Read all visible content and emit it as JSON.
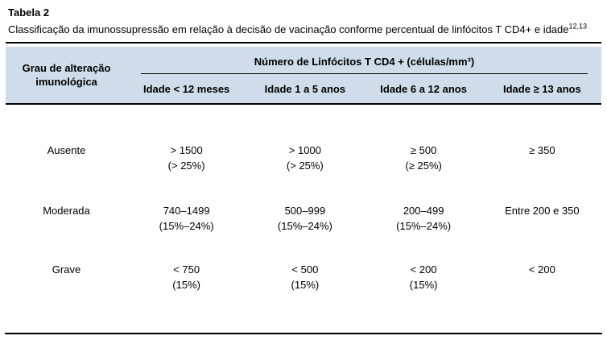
{
  "page": {
    "title": "Tabela 2",
    "subtitle": "Classificação da imunossupressão em relação à decisão de vacinação conforme percentual de linfócitos T CD4+ e idade",
    "subtitle_superscript": "12,13"
  },
  "table": {
    "row_header": {
      "line1": "Grau de alteração",
      "line2": "imunológica"
    },
    "span_header": "Número de Linfócitos T CD4 + (células/mm³)",
    "columns": [
      "Idade < 12 meses",
      "Idade 1 a 5 anos",
      "Idade 6 a 12 anos",
      "Idade ≥ 13 anos"
    ],
    "rows": [
      {
        "label": "Ausente",
        "cells": [
          {
            "value": "> 1500",
            "pct": "(> 25%)"
          },
          {
            "value": "> 1000",
            "pct": "(> 25%)"
          },
          {
            "value": "≥ 500",
            "pct": "(≥ 25%)"
          },
          {
            "value": "≥ 350",
            "pct": ""
          }
        ]
      },
      {
        "label": "Moderada",
        "cells": [
          {
            "value": "740–1499",
            "pct": "(15%–24%)"
          },
          {
            "value": "500–999",
            "pct": "(15%–24%)"
          },
          {
            "value": "200–499",
            "pct": "(15%–24%)"
          },
          {
            "value": "Entre 200 e 350",
            "pct": ""
          }
        ]
      },
      {
        "label": "Grave",
        "cells": [
          {
            "value": "< 750",
            "pct": "(15%)"
          },
          {
            "value": "< 500",
            "pct": "(15%)"
          },
          {
            "value": "< 200",
            "pct": "(15%)"
          },
          {
            "value": "< 200",
            "pct": ""
          }
        ]
      }
    ]
  },
  "colors": {
    "header_bg": "#cedde9",
    "rule": "#000000",
    "text": "#000000"
  }
}
